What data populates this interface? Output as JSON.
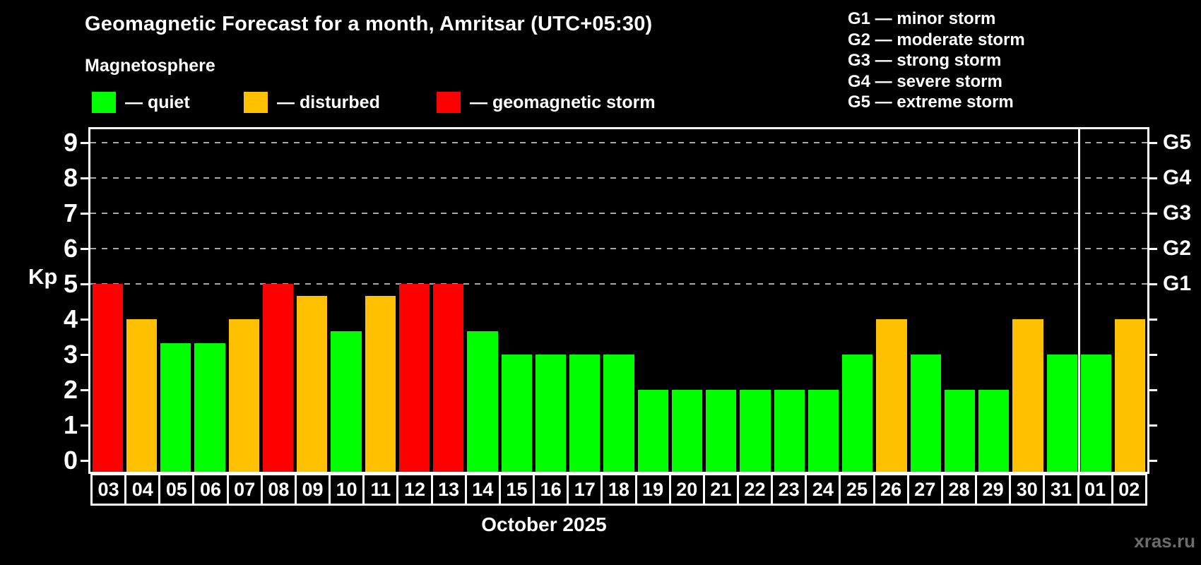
{
  "chart_data": {
    "type": "bar",
    "title": "Geomagnetic Forecast for a month, Amritsar (UTC+05:30)",
    "subtitle": "Magnetosphere",
    "xlabel": "October 2025",
    "ylabel": "Kp",
    "ylim": [
      -0.32,
      9.38
    ],
    "yticks": [
      0,
      1,
      2,
      3,
      4,
      5,
      6,
      7,
      8,
      9
    ],
    "gridline_values": [
      5,
      6,
      7,
      8,
      9
    ],
    "grid": "dashed horizontal lines at Kp 5-9",
    "legend_position": "top-left",
    "right_axis_labels": [
      {
        "value": 5,
        "label": "G1"
      },
      {
        "value": 6,
        "label": "G2"
      },
      {
        "value": 7,
        "label": "G3"
      },
      {
        "value": 8,
        "label": "G4"
      },
      {
        "value": 9,
        "label": "G5"
      }
    ],
    "categories": [
      "03",
      "04",
      "05",
      "06",
      "07",
      "08",
      "09",
      "10",
      "11",
      "12",
      "13",
      "14",
      "15",
      "16",
      "17",
      "18",
      "19",
      "20",
      "21",
      "22",
      "23",
      "24",
      "25",
      "26",
      "27",
      "28",
      "29",
      "30",
      "31",
      "01",
      "02"
    ],
    "values": [
      5,
      4,
      3.33,
      3.33,
      4,
      5,
      4.67,
      3.67,
      4.67,
      5,
      5,
      3.67,
      3,
      3,
      3,
      3,
      2,
      2,
      2,
      2,
      2,
      2,
      3,
      4,
      3,
      2,
      2,
      4,
      3,
      3,
      4
    ],
    "states": [
      "storm",
      "disturbed",
      "quiet",
      "quiet",
      "disturbed",
      "storm",
      "disturbed",
      "quiet",
      "disturbed",
      "storm",
      "storm",
      "quiet",
      "quiet",
      "quiet",
      "quiet",
      "quiet",
      "quiet",
      "quiet",
      "quiet",
      "quiet",
      "quiet",
      "quiet",
      "quiet",
      "disturbed",
      "quiet",
      "quiet",
      "quiet",
      "disturbed",
      "quiet",
      "quiet",
      "disturbed"
    ],
    "state_colors": {
      "quiet": "#00ff00",
      "disturbed": "#ffc000",
      "storm": "#ff0000"
    },
    "month_separator_before_category": "01"
  },
  "legend": {
    "items": [
      {
        "state": "quiet",
        "label": "— quiet",
        "color": "#00ff00"
      },
      {
        "state": "disturbed",
        "label": "— disturbed",
        "color": "#ffc000"
      },
      {
        "state": "storm",
        "label": "— geomagnetic storm",
        "color": "#ff0000"
      }
    ]
  },
  "storm_scale_legend": [
    "G1 — minor storm",
    "G2 — moderate storm",
    "G3 — strong storm",
    "G4 — severe storm",
    "G5 — extreme storm"
  ],
  "watermark": "xras.ru"
}
